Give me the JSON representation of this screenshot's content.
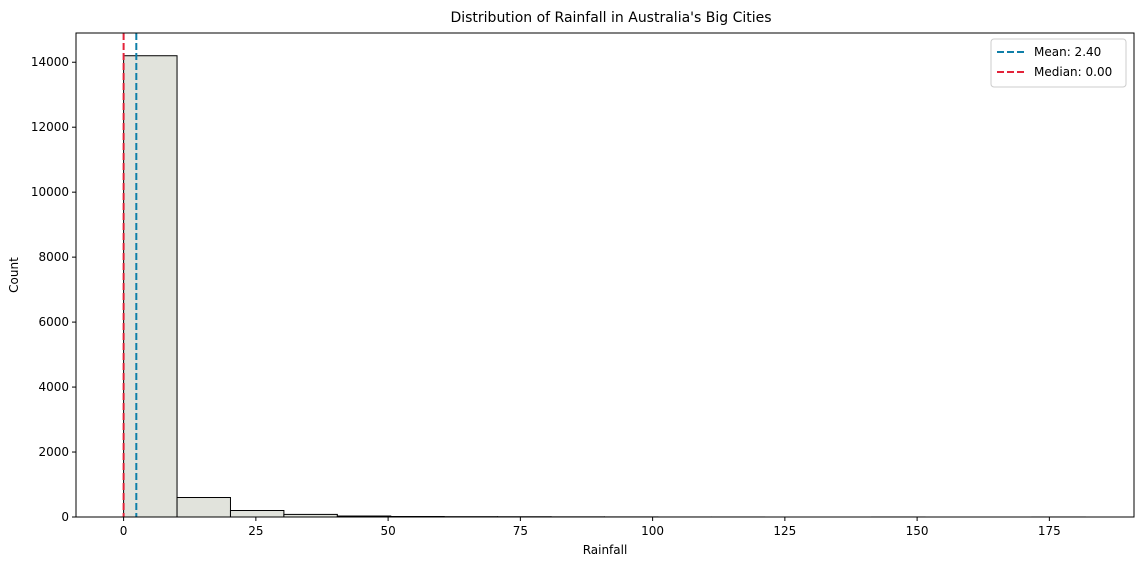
{
  "chart_data": {
    "type": "bar",
    "title": "Distribution of Rainfall in Australia's Big Cities",
    "xlabel": "Rainfall",
    "ylabel": "Count",
    "xlim": [
      -9,
      191
    ],
    "ylim": [
      0,
      14900
    ],
    "x_ticks": [
      0,
      25,
      50,
      75,
      100,
      125,
      150,
      175
    ],
    "y_ticks": [
      0,
      2000,
      4000,
      6000,
      8000,
      10000,
      12000,
      14000
    ],
    "bin_edges": [
      0,
      10.1,
      20.2,
      30.3,
      40.4,
      50.5,
      60.6,
      70.7,
      80.8,
      90.9,
      101.0,
      111.1,
      121.2,
      131.3,
      141.4,
      151.5,
      161.6,
      171.7,
      181.8
    ],
    "counts": [
      14200,
      600,
      200,
      80,
      30,
      15,
      10,
      8,
      5,
      3,
      1,
      1,
      0,
      0,
      1,
      0,
      0,
      1
    ],
    "bar_fill": "#e1e3dc",
    "bar_edge": "#000000",
    "grid": false,
    "reference_lines": [
      {
        "label": "Mean: 2.40",
        "value": 2.4,
        "color": "#0f7fa8",
        "style": "dashed"
      },
      {
        "label": "Median: 0.00",
        "value": 0.0,
        "color": "#e3233a",
        "style": "dashed"
      }
    ],
    "legend_position": "top-right"
  }
}
